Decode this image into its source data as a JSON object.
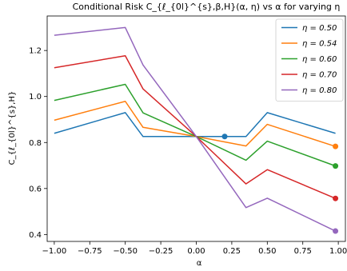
{
  "chart_data": {
    "type": "line",
    "title": "Conditional Risk C_{ℓ_{0l}^{s},β,H}(α, η) vs α for varying η",
    "xlabel": "α",
    "ylabel": "C_{ℓ_{0l}^{s},H}",
    "xlim": [
      -1.05,
      1.05
    ],
    "ylim": [
      0.37,
      1.35
    ],
    "x_ticks": [
      -1.0,
      -0.75,
      -0.5,
      -0.25,
      0.0,
      0.25,
      0.5,
      0.75,
      1.0
    ],
    "x_tick_labels": [
      "−1.00",
      "−0.75",
      "−0.50",
      "−0.25",
      "0.00",
      "0.25",
      "0.50",
      "0.75",
      "1.00"
    ],
    "y_ticks": [
      0.4,
      0.6,
      0.8,
      1.0,
      1.2
    ],
    "y_tick_labels": [
      "0.4",
      "0.6",
      "0.8",
      "1.0",
      "1.2"
    ],
    "grid": false,
    "legend_position": "top-right",
    "series": [
      {
        "name": "η = 0.50",
        "color": "#1f77b4",
        "x": [
          -1.0,
          -0.5,
          -0.375,
          0.0,
          0.35,
          0.5,
          0.98
        ],
        "y": [
          0.84,
          0.93,
          0.826,
          0.826,
          0.826,
          0.93,
          0.84
        ],
        "marker": {
          "x": 0.2,
          "y": 0.826
        }
      },
      {
        "name": "η = 0.54",
        "color": "#ff7f0e",
        "x": [
          -1.0,
          -0.5,
          -0.375,
          0.0,
          0.35,
          0.5,
          0.98
        ],
        "y": [
          0.897,
          0.979,
          0.866,
          0.826,
          0.785,
          0.879,
          0.783
        ],
        "marker": {
          "x": 0.98,
          "y": 0.783
        }
      },
      {
        "name": "η = 0.60",
        "color": "#2ca02c",
        "x": [
          -1.0,
          -0.5,
          -0.375,
          0.0,
          0.35,
          0.5,
          0.98
        ],
        "y": [
          0.983,
          1.053,
          0.929,
          0.826,
          0.723,
          0.806,
          0.698
        ],
        "marker": {
          "x": 0.98,
          "y": 0.698
        }
      },
      {
        "name": "η = 0.70",
        "color": "#d62728",
        "x": [
          -1.0,
          -0.5,
          -0.375,
          0.0,
          0.35,
          0.5,
          0.98
        ],
        "y": [
          1.125,
          1.177,
          1.033,
          0.826,
          0.62,
          0.682,
          0.557
        ],
        "marker": {
          "x": 0.98,
          "y": 0.557
        }
      },
      {
        "name": "η = 0.80",
        "color": "#9467bd",
        "x": [
          -1.0,
          -0.5,
          -0.375,
          0.0,
          0.35,
          0.5,
          0.98
        ],
        "y": [
          1.266,
          1.3,
          1.137,
          0.826,
          0.517,
          0.558,
          0.415
        ],
        "marker": {
          "x": 0.98,
          "y": 0.415
        }
      }
    ]
  }
}
